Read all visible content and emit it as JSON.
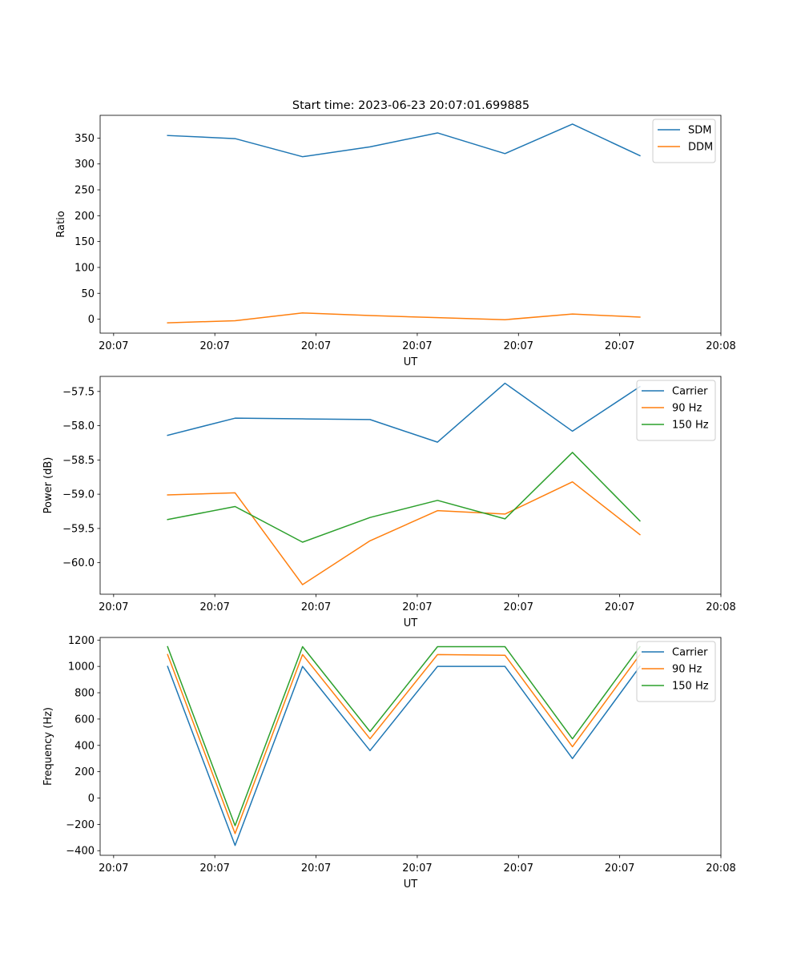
{
  "figure": {
    "title": "Start time: 2023-06-23 20:07:01.699885",
    "colors": {
      "blue": "#1f77b4",
      "orange": "#ff7f0e",
      "green": "#2ca02c"
    }
  },
  "chart_data": [
    {
      "type": "line",
      "xlabel": "UT",
      "ylabel": "Ratio",
      "x": [
        0.5,
        1.0,
        1.5,
        2.0,
        2.5,
        3.0,
        3.5,
        4.0
      ],
      "xlim": [
        0,
        4.6
      ],
      "x_ticks": [
        0.1,
        0.85,
        1.6,
        2.35,
        3.1,
        3.85,
        4.6
      ],
      "x_tick_labels": [
        "20:07",
        "20:07",
        "20:07",
        "20:07",
        "20:07",
        "20:07",
        "20:08"
      ],
      "ylim": [
        -27,
        394
      ],
      "y_ticks": [
        0,
        50,
        100,
        150,
        200,
        250,
        300,
        350
      ],
      "y_tick_labels": [
        "0",
        "50",
        "100",
        "150",
        "200",
        "250",
        "300",
        "350"
      ],
      "legend_position": "top-right",
      "series": [
        {
          "name": "SDM",
          "color": "#1f77b4",
          "values": [
            355,
            349,
            314,
            333,
            360,
            320,
            377,
            316
          ]
        },
        {
          "name": "DDM",
          "color": "#ff7f0e",
          "values": [
            -7,
            -3,
            12,
            7,
            3,
            -1,
            10,
            4
          ]
        }
      ]
    },
    {
      "type": "line",
      "xlabel": "UT",
      "ylabel": "Power (dB)",
      "x": [
        0.5,
        1.0,
        1.5,
        2.0,
        2.5,
        3.0,
        3.5,
        4.0
      ],
      "xlim": [
        0,
        4.6
      ],
      "x_ticks": [
        0.1,
        0.85,
        1.6,
        2.35,
        3.1,
        3.85,
        4.6
      ],
      "x_tick_labels": [
        "20:07",
        "20:07",
        "20:07",
        "20:07",
        "20:07",
        "20:07",
        "20:08"
      ],
      "ylim": [
        -60.46,
        -57.28
      ],
      "y_ticks": [
        -60.0,
        -59.5,
        -59.0,
        -58.5,
        -58.0,
        -57.5
      ],
      "y_tick_labels": [
        "−60.0",
        "−59.5",
        "−59.0",
        "−58.5",
        "−58.0",
        "−57.5"
      ],
      "legend_position": "top-right",
      "series": [
        {
          "name": "Carrier",
          "color": "#1f77b4",
          "values": [
            -58.14,
            -57.89,
            -57.9,
            -57.91,
            -58.24,
            -57.38,
            -58.08,
            -57.43
          ]
        },
        {
          "name": "90 Hz",
          "color": "#ff7f0e",
          "values": [
            -59.01,
            -58.98,
            -60.32,
            -59.68,
            -59.24,
            -59.29,
            -58.82,
            -59.59
          ]
        },
        {
          "name": "150 Hz",
          "color": "#2ca02c",
          "values": [
            -59.37,
            -59.18,
            -59.7,
            -59.34,
            -59.09,
            -59.36,
            -58.39,
            -59.39
          ]
        }
      ]
    },
    {
      "type": "line",
      "xlabel": "UT",
      "ylabel": "Frequency (Hz)",
      "x": [
        0.5,
        1.0,
        1.5,
        2.0,
        2.5,
        3.0,
        3.5,
        4.0
      ],
      "xlim": [
        0,
        4.6
      ],
      "x_ticks": [
        0.1,
        0.85,
        1.6,
        2.35,
        3.1,
        3.85,
        4.6
      ],
      "x_tick_labels": [
        "20:07",
        "20:07",
        "20:07",
        "20:07",
        "20:07",
        "20:07",
        "20:08"
      ],
      "ylim": [
        -435,
        1220
      ],
      "y_ticks": [
        -400,
        -200,
        0,
        200,
        400,
        600,
        800,
        1000,
        1200
      ],
      "y_tick_labels": [
        "−400",
        "−200",
        "0",
        "200",
        "400",
        "600",
        "800",
        "1000",
        "1200"
      ],
      "legend_position": "top-right",
      "series": [
        {
          "name": "Carrier",
          "color": "#1f77b4",
          "values": [
            1000,
            -360,
            1000,
            360,
            1000,
            1000,
            300,
            1000
          ]
        },
        {
          "name": "90 Hz",
          "color": "#ff7f0e",
          "values": [
            1090,
            -270,
            1090,
            450,
            1090,
            1085,
            390,
            1090
          ]
        },
        {
          "name": "150 Hz",
          "color": "#2ca02c",
          "values": [
            1150,
            -210,
            1150,
            505,
            1150,
            1150,
            450,
            1150
          ]
        }
      ]
    }
  ]
}
